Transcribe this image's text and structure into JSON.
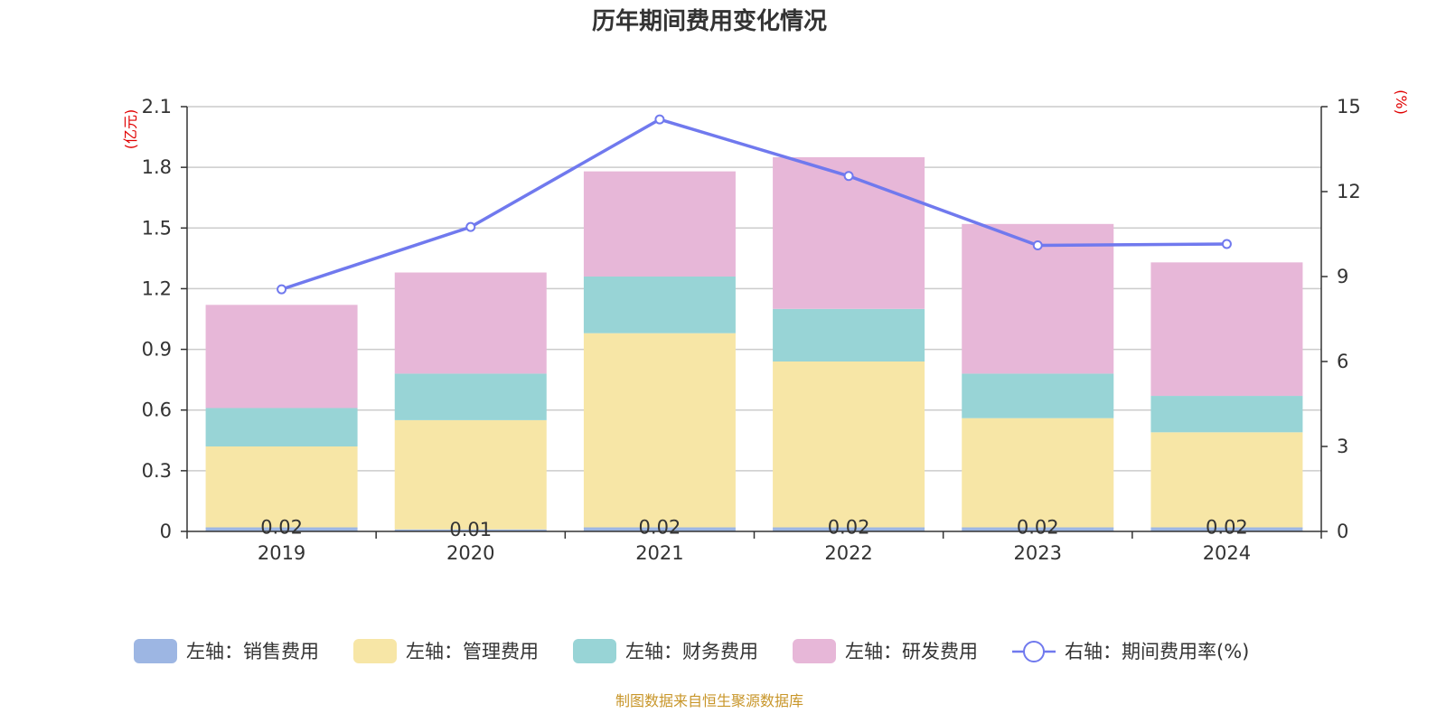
{
  "chart_data": {
    "type": "bar",
    "title": "历年期间费用变化情况",
    "categories": [
      "2019",
      "2020",
      "2021",
      "2022",
      "2023",
      "2024"
    ],
    "left_axis": {
      "unit": "(亿元)",
      "ylim": [
        0,
        2.1
      ],
      "ticks": [
        "0",
        "0.3",
        "0.6",
        "0.9",
        "1.2",
        "1.5",
        "1.8",
        "2.1"
      ]
    },
    "right_axis": {
      "unit": "(%)",
      "ylim": [
        0,
        15
      ],
      "ticks": [
        "0",
        "3",
        "6",
        "9",
        "12",
        "15"
      ]
    },
    "series": [
      {
        "name": "左轴：销售费用",
        "kind": "bar",
        "axis": "left",
        "color": "#9db6e3",
        "values": [
          0.02,
          0.01,
          0.02,
          0.02,
          0.02,
          0.02
        ],
        "labels": [
          "0.02",
          "0.01",
          "0.02",
          "0.02",
          "0.02",
          "0.02"
        ]
      },
      {
        "name": "左轴：管理费用",
        "kind": "bar",
        "axis": "left",
        "color": "#f7e6a6",
        "values": [
          0.4,
          0.54,
          0.96,
          0.82,
          0.54,
          0.47
        ]
      },
      {
        "name": "左轴：财务费用",
        "kind": "bar",
        "axis": "left",
        "color": "#98d4d6",
        "values": [
          0.19,
          0.23,
          0.28,
          0.26,
          0.22,
          0.18
        ]
      },
      {
        "name": "左轴：研发费用",
        "kind": "bar",
        "axis": "left",
        "color": "#e7b7d8",
        "values": [
          0.51,
          0.5,
          0.52,
          0.75,
          0.74,
          0.66
        ]
      },
      {
        "name": "右轴：期间费用率(%)",
        "kind": "line",
        "axis": "right",
        "color": "#7079ee",
        "values": [
          8.55,
          10.75,
          14.55,
          12.55,
          10.1,
          10.15
        ]
      }
    ],
    "grid": true,
    "legend": "bottom"
  },
  "source_note": "制图数据来自恒生聚源数据库"
}
